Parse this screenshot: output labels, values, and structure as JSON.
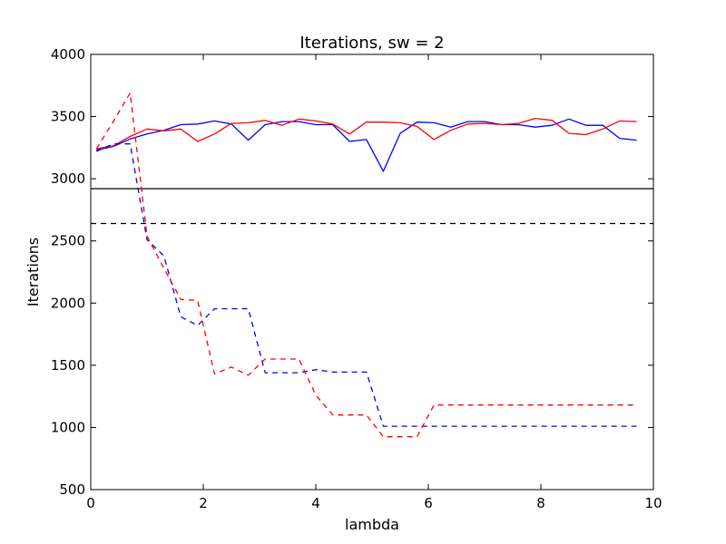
{
  "chart_data": {
    "type": "line",
    "title": "Iterations, sw = 2",
    "xlabel": "lambda",
    "ylabel": "Iterations",
    "xlim": [
      0,
      10
    ],
    "ylim": [
      500,
      4000
    ],
    "xticks": [
      0,
      2,
      4,
      6,
      8,
      10
    ],
    "yticks": [
      500,
      1000,
      1500,
      2000,
      2500,
      3000,
      3500,
      4000
    ],
    "x_tick_labels": [
      "0",
      "2",
      "4",
      "6",
      "8",
      "10"
    ],
    "y_tick_labels": [
      "500",
      "1000",
      "1500",
      "2000",
      "2500",
      "3000",
      "3500",
      "4000"
    ],
    "grid": false,
    "legend": "none",
    "x": [
      0.1,
      0.4,
      0.7,
      1.0,
      1.3,
      1.6,
      1.9,
      2.2,
      2.5,
      2.8,
      3.1,
      3.4,
      3.7,
      4.0,
      4.3,
      4.6,
      4.9,
      5.2,
      5.5,
      5.8,
      6.1,
      6.4,
      6.7,
      7.0,
      7.3,
      7.6,
      7.9,
      8.2,
      8.5,
      8.8,
      9.1,
      9.4,
      9.7
    ],
    "series": [
      {
        "color": "#0000ff",
        "style": "solid",
        "values": [
          3230,
          3260,
          3320,
          3360,
          3390,
          3435,
          3440,
          3465,
          3440,
          3310,
          3435,
          3460,
          3460,
          3435,
          3435,
          3300,
          3315,
          3060,
          3365,
          3455,
          3450,
          3415,
          3460,
          3460,
          3435,
          3435,
          3415,
          3430,
          3480,
          3430,
          3430,
          3325,
          3310
        ]
      },
      {
        "color": "#ff0000",
        "style": "solid",
        "values": [
          3240,
          3265,
          3340,
          3400,
          3385,
          3400,
          3300,
          3360,
          3445,
          3450,
          3470,
          3430,
          3480,
          3465,
          3440,
          3360,
          3455,
          3455,
          3450,
          3420,
          3315,
          3390,
          3440,
          3445,
          3435,
          3445,
          3485,
          3470,
          3365,
          3355,
          3400,
          3465,
          3460
        ]
      },
      {
        "color": "#0000ff",
        "style": "dashed",
        "values": [
          3220,
          3280,
          3280,
          2510,
          2380,
          1890,
          1820,
          1955,
          1955,
          1955,
          1440,
          1440,
          1440,
          1465,
          1445,
          1445,
          1445,
          1010,
          1010,
          1010,
          1010,
          1010,
          1010,
          1010,
          1010,
          1010,
          1010,
          1010,
          1010,
          1010,
          1010,
          1010,
          1010
        ]
      },
      {
        "color": "#ff0000",
        "style": "dashed",
        "values": [
          3240,
          3460,
          3690,
          2540,
          2280,
          2030,
          2020,
          1430,
          1485,
          1420,
          1550,
          1550,
          1550,
          1260,
          1100,
          1100,
          1100,
          925,
          925,
          925,
          1180,
          1180,
          1180,
          1180,
          1180,
          1180,
          1180,
          1180,
          1180,
          1180,
          1180,
          1180,
          1180
        ]
      }
    ],
    "hlines": [
      {
        "y": 2920,
        "style": "solid",
        "color": "#000000"
      },
      {
        "y": 2640,
        "style": "dashed",
        "color": "#000000"
      }
    ]
  }
}
